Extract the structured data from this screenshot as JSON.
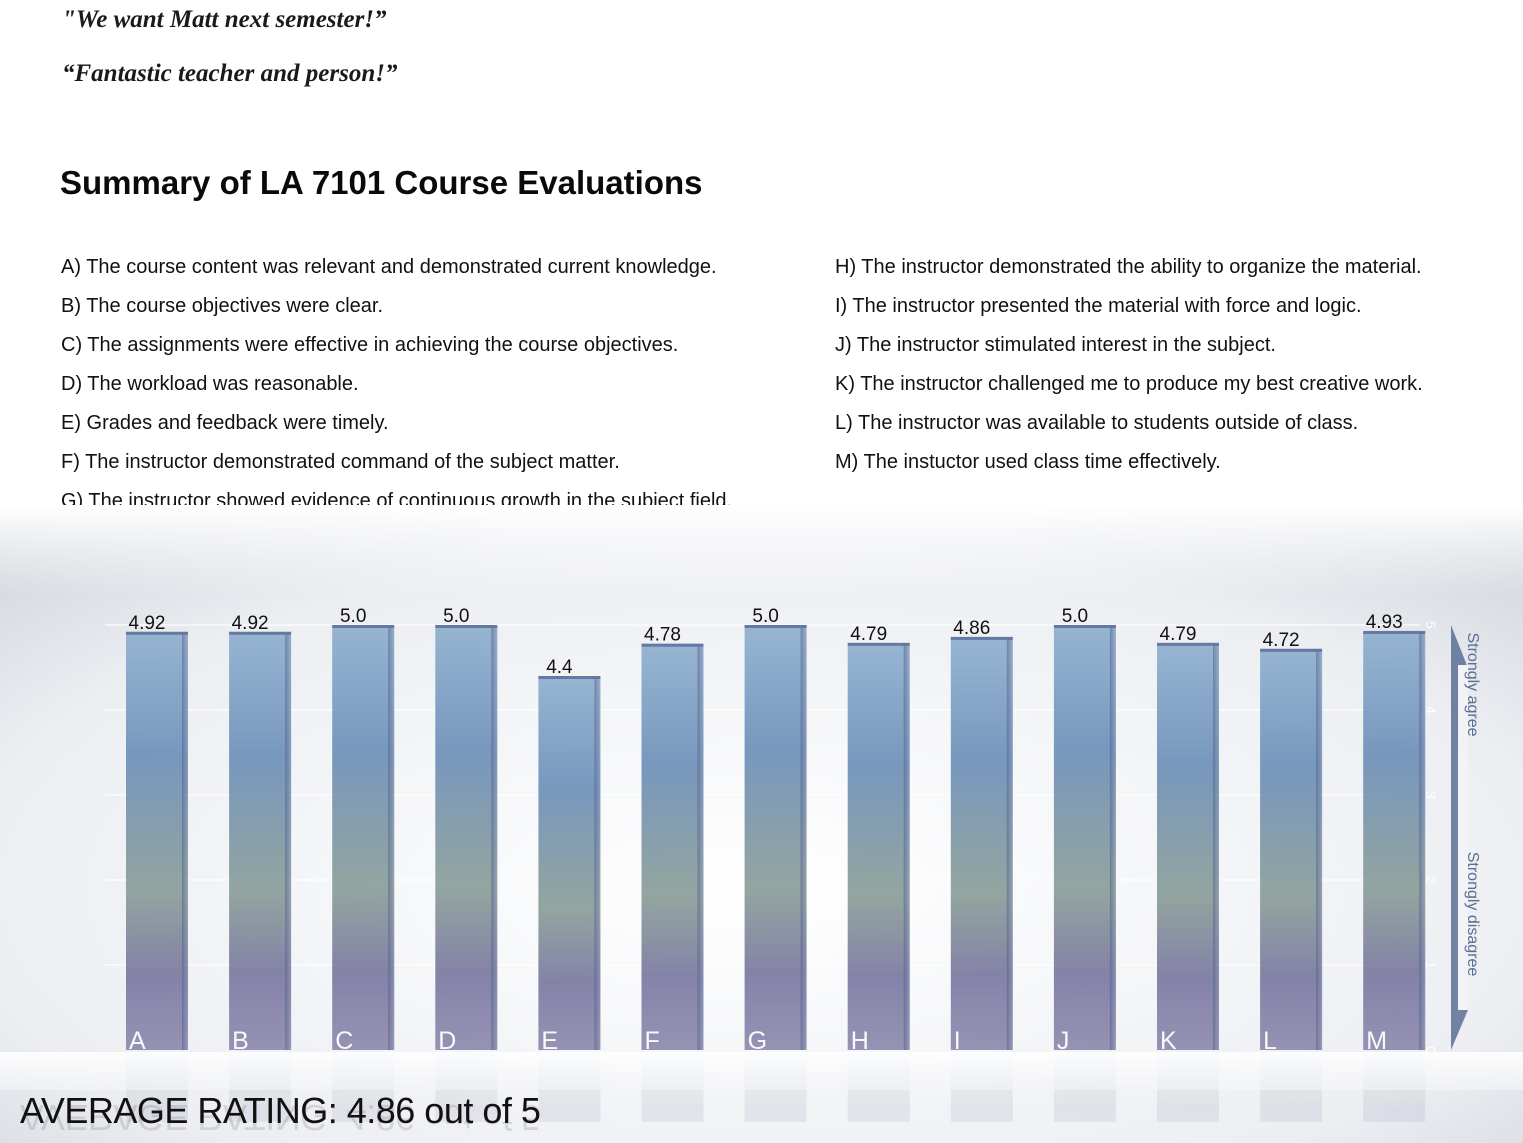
{
  "quotes": [
    "\"We want Matt next semester!”",
    "“Fantastic teacher and person!”"
  ],
  "page_title": "Summary of LA 7101 Course Evaluations",
  "questions_left": [
    "A) The course content was relevant and demonstrated current knowledge.",
    "B) The course objectives were clear.",
    "C) The assignments were effective in achieving the course objectives.",
    "D) The workload was reasonable.",
    "E) Grades and feedback were timely.",
    "F) The instructor demonstrated command of the subject matter.",
    "G) The instructor showed evidence of continuous growth in the subject field."
  ],
  "questions_right": [
    "H) The instructor demonstrated the ability to organize the material.",
    "I) The instructor presented the material with force and logic.",
    "J) The instructor stimulated interest in the subject.",
    "K) The instructor challenged me to produce my best creative work.",
    "L) The instructor was available to students outside of class.",
    "M) The instuctor used class time effectively."
  ],
  "average_rating": "AVERAGE RATING: 4.86 out of 5",
  "colors": {
    "bar_top": "#8fb0cf",
    "bar_mid": "#6d8fb8",
    "bar_green": "#8a9e98",
    "bar_base": "#7a78a0",
    "arrow": "#5a6f95"
  },
  "chart_data": {
    "type": "bar",
    "categories": [
      "A",
      "B",
      "C",
      "D",
      "E",
      "F",
      "G",
      "H",
      "I",
      "J",
      "K",
      "L",
      "M"
    ],
    "values": [
      4.92,
      4.92,
      5.0,
      5.0,
      4.4,
      4.78,
      5.0,
      4.79,
      4.86,
      5.0,
      4.79,
      4.72,
      4.93
    ],
    "value_labels": [
      "4.92",
      "4.92",
      "5.0",
      "5.0",
      "4.4",
      "4.78",
      "5.0",
      "4.79",
      "4.86",
      "5.0",
      "4.79",
      "4.72",
      "4.93"
    ],
    "ylim": [
      0,
      5
    ],
    "y_ticks": [
      "0",
      "1",
      "2",
      "3",
      "4",
      "5"
    ],
    "scale_labels": [
      "Strongly disagree",
      "Strongly agree"
    ],
    "grid": true,
    "axis_side": "right"
  }
}
